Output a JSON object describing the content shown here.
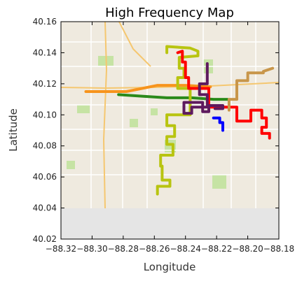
{
  "chart_data": {
    "type": "line",
    "title": "High Frequency Map",
    "xlabel": "Longitude",
    "ylabel": "Latitude",
    "xlim": [
      -88.32,
      -88.18
    ],
    "ylim": [
      40.02,
      40.16
    ],
    "x_ticks": [
      -88.32,
      -88.3,
      -88.28,
      -88.26,
      -88.24,
      -88.22,
      -88.2,
      -88.18
    ],
    "y_ticks": [
      40.02,
      40.04,
      40.06,
      40.08,
      40.1,
      40.12,
      40.14,
      40.16
    ],
    "x_tick_labels": [
      "−88.32",
      "−88.30",
      "−88.28",
      "−88.26",
      "−88.24",
      "−88.22",
      "−88.20",
      "−88.18"
    ],
    "y_tick_labels": [
      "40.02",
      "40.04",
      "40.06",
      "40.08",
      "40.10",
      "40.12",
      "40.14",
      "40.16"
    ],
    "grid": false,
    "background": "street basemap",
    "series": [
      {
        "color": "#f7941d",
        "x": [
          -88.304,
          -88.278,
          -88.258,
          -88.24,
          -88.224
        ],
        "y": [
          40.115,
          40.115,
          40.119,
          40.119,
          40.118
        ]
      },
      {
        "color": "#2a8a1a",
        "x": [
          -88.283,
          -88.268,
          -88.252,
          -88.236,
          -88.222,
          -88.213
        ],
        "y": [
          40.113,
          40.112,
          40.111,
          40.111,
          40.11,
          40.11
        ]
      },
      {
        "color": "#b8c410",
        "x": [
          -88.252,
          -88.252,
          -88.237,
          -88.232,
          -88.232,
          -88.244,
          -88.244,
          -88.241,
          -88.241,
          -88.245,
          -88.245,
          -88.237,
          -88.237,
          -88.252,
          -88.252,
          -88.247,
          -88.247,
          -88.252,
          -88.252,
          -88.248,
          -88.248,
          -88.256,
          -88.256,
          -88.255,
          -88.255,
          -88.25,
          -88.25,
          -88.258,
          -88.258
        ],
        "y": [
          40.14,
          40.144,
          40.143,
          40.141,
          40.138,
          40.137,
          40.13,
          40.13,
          40.124,
          40.124,
          40.117,
          40.117,
          40.1,
          40.1,
          40.093,
          40.093,
          40.086,
          40.086,
          40.081,
          40.081,
          40.074,
          40.074,
          40.067,
          40.067,
          40.058,
          40.058,
          40.054,
          40.054,
          40.049
        ]
      },
      {
        "color": "#ff0000",
        "x": [
          -88.245,
          -88.242,
          -88.242,
          -88.24,
          -88.24,
          -88.238,
          -88.238,
          -88.225,
          -88.225,
          -88.207,
          -88.207,
          -88.198,
          -88.198,
          -88.191,
          -88.191,
          -88.188,
          -88.188,
          -88.191,
          -88.191,
          -88.186,
          -88.186
        ],
        "y": [
          40.14,
          40.141,
          40.134,
          40.134,
          40.124,
          40.124,
          40.117,
          40.117,
          40.105,
          40.105,
          40.096,
          40.096,
          40.103,
          40.103,
          40.098,
          40.098,
          40.092,
          40.092,
          40.088,
          40.088,
          40.085
        ]
      },
      {
        "color": "#5e1a5e",
        "x": [
          -88.226,
          -88.226,
          -88.231,
          -88.231,
          -88.226,
          -88.226,
          -88.236,
          -88.236,
          -88.241,
          -88.241,
          -88.229,
          -88.229,
          -88.225,
          -88.225,
          -88.216,
          -88.216,
          -88.221
        ],
        "y": [
          40.133,
          40.12,
          40.12,
          40.113,
          40.113,
          40.105,
          40.105,
          40.101,
          40.101,
          40.108,
          40.108,
          40.102,
          40.102,
          40.106,
          40.106,
          40.104,
          40.104
        ]
      },
      {
        "color": "#0000ff",
        "x": [
          -88.222,
          -88.218,
          -88.218,
          -88.216,
          -88.216
        ],
        "y": [
          40.098,
          40.098,
          40.095,
          40.095,
          40.09
        ]
      },
      {
        "color": "#c8964a",
        "x": [
          -88.212,
          -88.212,
          -88.207,
          -88.207,
          -88.2,
          -88.2,
          -88.19,
          -88.19,
          -88.184
        ],
        "y": [
          40.103,
          40.11,
          40.11,
          40.122,
          40.122,
          40.127,
          40.127,
          40.128,
          40.13
        ]
      }
    ]
  }
}
